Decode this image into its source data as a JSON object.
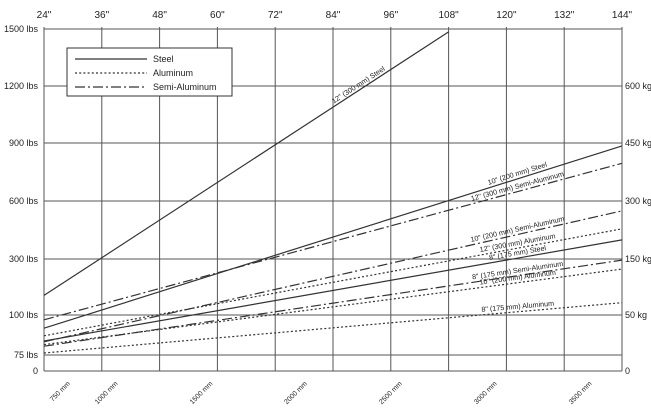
{
  "chart_data": {
    "type": "line",
    "x_top_ticks": [
      "24\"",
      "36\"",
      "48\"",
      "60\"",
      "72\"",
      "84\"",
      "96\"",
      "108\"",
      "120\"",
      "132\"",
      "144\""
    ],
    "x_top_range": [
      24,
      144
    ],
    "x_bottom_ticks": [
      {
        "label": "750 mm",
        "inch": 29.5
      },
      {
        "label": "1000 mm",
        "inch": 39.4
      },
      {
        "label": "1500 mm",
        "inch": 59.1
      },
      {
        "label": "2000 mm",
        "inch": 78.7
      },
      {
        "label": "2500 mm",
        "inch": 98.4
      },
      {
        "label": "3000 mm",
        "inch": 118.1
      },
      {
        "label": "3500 mm",
        "inch": 137.8
      }
    ],
    "y_left_ticks": [
      "0",
      "75 lbs",
      "100 lbs",
      "300 lbs",
      "600 lbs",
      "900 lbs",
      "1200 lbs",
      "1500 lbs"
    ],
    "y_right_ticks": [
      "0",
      "50 kg",
      "150 kg",
      "300 kg",
      "450 kg",
      "600 kg"
    ],
    "y_scale": "nonlinear (gridline index 0-7)",
    "legend": {
      "placement": "top-left",
      "entries": [
        {
          "name": "Steel",
          "style": "solid"
        },
        {
          "name": "Aluminum",
          "style": "dotted"
        },
        {
          "name": "Semi-Aluminum",
          "style": "dash-dot"
        }
      ]
    },
    "series": [
      {
        "name": "12\" (300 mm) Steel",
        "style": "solid",
        "label": "12\" (300 mm) Steel",
        "points": [
          [
            24,
            2.35
          ],
          [
            108,
            6.95
          ]
        ]
      },
      {
        "name": "10\" (200 mm) Steel",
        "style": "solid",
        "label": "10\" (200 mm) Steel",
        "points": [
          [
            24,
            1.67
          ],
          [
            144,
            4.95
          ]
        ]
      },
      {
        "name": "12\" (300 mm) Semi-Aluminum",
        "style": "dash-dot",
        "label": "12\" (300 mm) Semi-Aluminum",
        "points": [
          [
            24,
            1.88
          ],
          [
            144,
            4.65
          ]
        ]
      },
      {
        "name": "10\" (200 mm) Semi-Aluminum",
        "style": "dash-dot",
        "label": "10\" (200 mm) Semi-Aluminum",
        "points": [
          [
            24,
            1.33
          ],
          [
            144,
            3.83
          ]
        ]
      },
      {
        "name": "12\" (300 mm) Aluminum",
        "style": "dotted",
        "label": "12\" (300 mm) Aluminum",
        "points": [
          [
            24,
            1.48
          ],
          [
            144,
            3.52
          ]
        ]
      },
      {
        "name": "8\" (175 mm) Steel",
        "style": "solid",
        "label": "8\" (175 mm) Steel",
        "points": [
          [
            24,
            1.35
          ],
          [
            144,
            3.33
          ]
        ]
      },
      {
        "name": "8\" (175 mm) Semi-Aluminum",
        "style": "dash-dot",
        "label": "8\" (175 mm) Semi-Aluminum",
        "points": [
          [
            24,
            1.22
          ],
          [
            144,
            2.98
          ]
        ]
      },
      {
        "name": "10\" (200 mm) Aluminum",
        "style": "dotted",
        "label": "10\" (200 mm) Aluminum",
        "points": [
          [
            24,
            1.26
          ],
          [
            144,
            2.82
          ]
        ]
      },
      {
        "name": "8\" (175 mm) Aluminum",
        "style": "dotted",
        "label": "8\" (175 mm) Aluminum",
        "points": [
          [
            24,
            1.05
          ],
          [
            144,
            2.22
          ]
        ]
      }
    ]
  }
}
